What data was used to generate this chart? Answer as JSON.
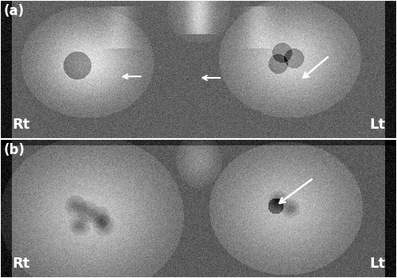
{
  "fig_width": 5.0,
  "fig_height": 3.5,
  "dpi": 100,
  "bg_color": "#000000",
  "panel_a_label": "(a)",
  "panel_b_label": "(b)",
  "rt_label": "Rt",
  "lt_label": "Lt",
  "label_color": "white",
  "label_fontsize": 13,
  "panel_label_fontsize": 12,
  "border_color": "white",
  "border_linewidth": 1.5,
  "panel_bg": "#808080"
}
